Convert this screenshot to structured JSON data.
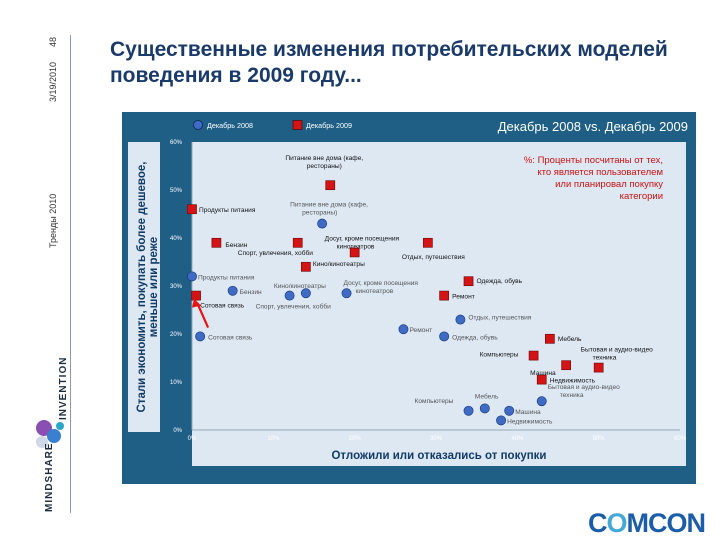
{
  "slide": {
    "page_number": "48",
    "date": "3/19/2010",
    "section": "Тренды 2010",
    "title": "Существенные изменения потребительских моделей поведения в 2009 году..."
  },
  "branding": {
    "mindshare": "MINDSHARE",
    "invention": "INVENTION",
    "comcon_prefix": "C",
    "comcon_o1": "O",
    "comcon_middle": "MC",
    "comcon_o2": "O",
    "comcon_suffix": "N"
  },
  "chart_data": {
    "type": "scatter",
    "title": "Декабрь 2008 vs. Декабрь 2009",
    "xlabel": "Отложили или отказались от покупки",
    "ylabel": "Стали экономить, покупать более дешевое, меньше или реже",
    "xlim": [
      0,
      60
    ],
    "ylim": [
      0,
      60
    ],
    "x_ticks": [
      "0%",
      "10%",
      "20%",
      "30%",
      "40%",
      "50%",
      "60%"
    ],
    "y_ticks": [
      "0%",
      "10%",
      "20%",
      "30%",
      "40%",
      "50%",
      "60%"
    ],
    "note": "%: Проценты посчитаны от тех, кто является пользователем или планировал покупку категории",
    "grid": false,
    "legend_position": "top-left",
    "colors": {
      "background": "#1f5f86",
      "plot": "#dde8f3",
      "s2008": "#3f6bc4",
      "s2009": "#d41414",
      "label2009": "#111111",
      "label2008": "#555555",
      "note": "#cc1111",
      "arrow": "#ee1111"
    },
    "series": [
      {
        "name": "Декабрь 2008",
        "marker": "circle",
        "points": [
          {
            "label": "Питание вне дома (кафе, рестораны)",
            "x": 16,
            "y": 43
          },
          {
            "label": "Продукты питания",
            "x": 0,
            "y": 32
          },
          {
            "label": "Бензин",
            "x": 5,
            "y": 29
          },
          {
            "label": "Кино/кинотеатры",
            "x": 14,
            "y": 28.5
          },
          {
            "label": "Досуг, кроме посещения кинотеатров",
            "x": 19,
            "y": 28.5
          },
          {
            "label": "Спорт, увлечения, хобби",
            "x": 12,
            "y": 28
          },
          {
            "label": "Сотовая связь",
            "x": 1,
            "y": 19.5
          },
          {
            "label": "Ремонт",
            "x": 26,
            "y": 21
          },
          {
            "label": "Одежда, обувь",
            "x": 31,
            "y": 19.5
          },
          {
            "label": "Отдых, путешествия",
            "x": 33,
            "y": 23
          },
          {
            "label": "Мебель",
            "x": 36,
            "y": 4.5
          },
          {
            "label": "Компьютеры",
            "x": 34,
            "y": 4
          },
          {
            "label": "Машина",
            "x": 39,
            "y": 4
          },
          {
            "label": "Недвижимость",
            "x": 38,
            "y": 2
          },
          {
            "label": "Бытовая и аудио-видео техника",
            "x": 43,
            "y": 6
          }
        ]
      },
      {
        "name": "Декабрь 2009",
        "marker": "square",
        "points": [
          {
            "label": "Питание вне дома (кафе, рестораны)",
            "x": 17,
            "y": 51
          },
          {
            "label": "Продукты питания",
            "x": 0,
            "y": 46
          },
          {
            "label": "Бензин",
            "x": 3,
            "y": 39
          },
          {
            "label": "Спорт, увлечения, хобби",
            "x": 13,
            "y": 39
          },
          {
            "label": "Досуг, кроме посещения кинотеатров",
            "x": 20,
            "y": 37
          },
          {
            "label": "Отдых, путешествия",
            "x": 29,
            "y": 39
          },
          {
            "label": "Кино/кинотеатры",
            "x": 14,
            "y": 34
          },
          {
            "label": "Одежда, обувь",
            "x": 34,
            "y": 31
          },
          {
            "label": "Ремонт",
            "x": 31,
            "y": 28
          },
          {
            "label": "Сотовая связь",
            "x": 0.5,
            "y": 28
          },
          {
            "label": "Мебель",
            "x": 44,
            "y": 19
          },
          {
            "label": "Компьютеры",
            "x": 42,
            "y": 15.5
          },
          {
            "label": "Машина",
            "x": 46,
            "y": 13.5
          },
          {
            "label": "Бытовая и аудио-видео техника",
            "x": 50,
            "y": 13
          },
          {
            "label": "Недвижимость",
            "x": 43,
            "y": 10.5
          }
        ]
      }
    ]
  }
}
